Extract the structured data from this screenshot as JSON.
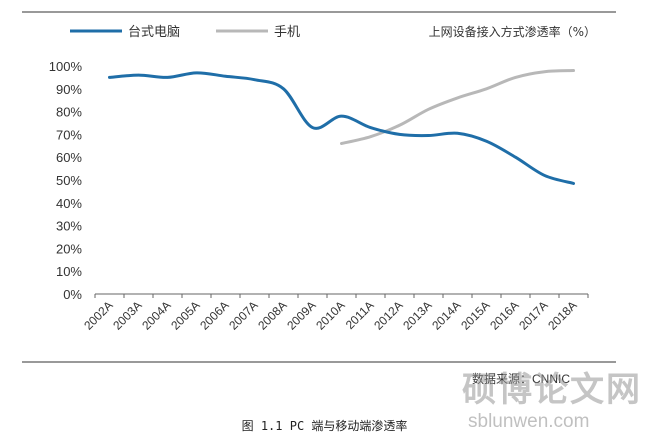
{
  "chart_data": {
    "type": "line",
    "title": "上网设备接入方式渗透率（%）",
    "categories": [
      "2002A",
      "2003A",
      "2004A",
      "2005A",
      "2006A",
      "2007A",
      "2008A",
      "2009A",
      "2010A",
      "2011A",
      "2012A",
      "2013A",
      "2014A",
      "2015A",
      "2016A",
      "2017A",
      "2018A"
    ],
    "series": [
      {
        "name": "台式电脑",
        "color": "#1f6ea8",
        "values": [
          95,
          96,
          95,
          97,
          95.5,
          94,
          90,
          73,
          78,
          73,
          70,
          69.5,
          70.5,
          67,
          60,
          52,
          48.5
        ]
      },
      {
        "name": "手机",
        "color": "#b8b8b8",
        "values": [
          null,
          null,
          null,
          null,
          null,
          null,
          null,
          null,
          66,
          69,
          74,
          81,
          86,
          90,
          95,
          97.5,
          98
        ]
      }
    ],
    "yticks": [
      "0%",
      "10%",
      "20%",
      "30%",
      "40%",
      "50%",
      "60%",
      "70%",
      "80%",
      "90%",
      "100%"
    ],
    "ylim": [
      0,
      100
    ],
    "legend_position": "top-left"
  },
  "caption": "图 1.1 PC 端与移动端渗透率",
  "source_note": "数据来源：CNNIC",
  "watermark_cn": "硕博论文网",
  "watermark_url": "sblunwen.com"
}
